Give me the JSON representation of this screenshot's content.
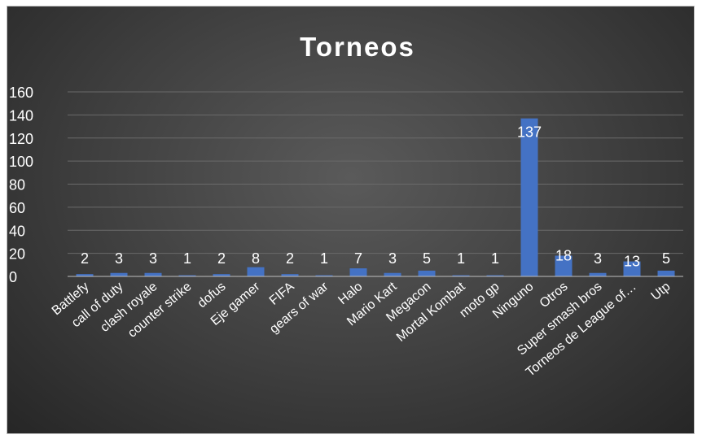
{
  "chart_data": {
    "type": "bar",
    "title": "Torneos",
    "xlabel": "",
    "ylabel": "",
    "ylim": [
      0,
      160
    ],
    "yticks": [
      0,
      20,
      40,
      60,
      80,
      100,
      120,
      140,
      160
    ],
    "grid": true,
    "legend": "none",
    "categories": [
      "Battlefy",
      "call of duty",
      "clash royale",
      "counter strike",
      "dofus",
      "Eje gamer",
      "FIFA",
      "gears of war",
      "Halo",
      "Mario Kart",
      "Megacon",
      "Mortal Kombat",
      "moto gp",
      "Ninguno",
      "Otros",
      "Super smash bros",
      "Torneos de League of…",
      "Utp"
    ],
    "values": [
      2,
      3,
      3,
      1,
      2,
      8,
      2,
      1,
      7,
      3,
      5,
      1,
      1,
      137,
      18,
      3,
      13,
      5
    ],
    "bar_color": "#4472c4",
    "background_color": "#404040",
    "text_color": "#ffffff"
  }
}
